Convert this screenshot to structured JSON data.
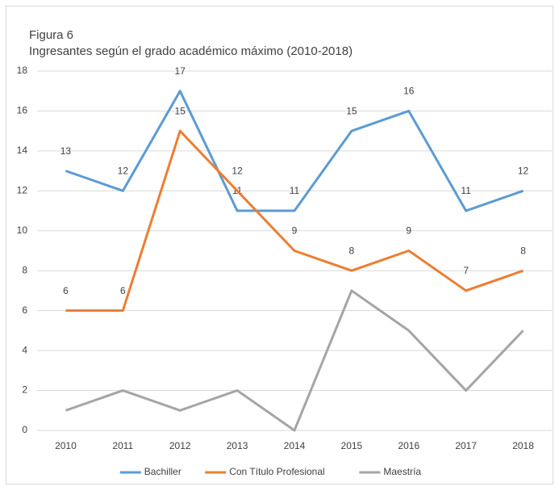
{
  "chart_data": {
    "type": "line",
    "title": "Figura 6",
    "subtitle": "Ingresantes según el grado académico máximo (2010-2018)",
    "categories": [
      "2010",
      "2011",
      "2012",
      "2013",
      "2014",
      "2015",
      "2016",
      "2017",
      "2018"
    ],
    "series": [
      {
        "name": "Bachiller",
        "color": "#5b9bd5",
        "data_labels": true,
        "values": [
          13,
          12,
          17,
          11,
          11,
          15,
          16,
          11,
          12
        ]
      },
      {
        "name": "Con Título Profesional",
        "color": "#ed7d31",
        "data_labels": true,
        "values": [
          6,
          6,
          15,
          12,
          9,
          8,
          9,
          7,
          8
        ]
      },
      {
        "name": "Maestría",
        "color": "#a5a5a5",
        "data_labels": false,
        "values": [
          1,
          2,
          1,
          2,
          0,
          7,
          5,
          2,
          5
        ]
      }
    ],
    "ylim": [
      0,
      18
    ],
    "yticks": [
      0,
      2,
      4,
      6,
      8,
      10,
      12,
      14,
      16,
      18
    ],
    "grid": true,
    "legend": "bottom"
  }
}
